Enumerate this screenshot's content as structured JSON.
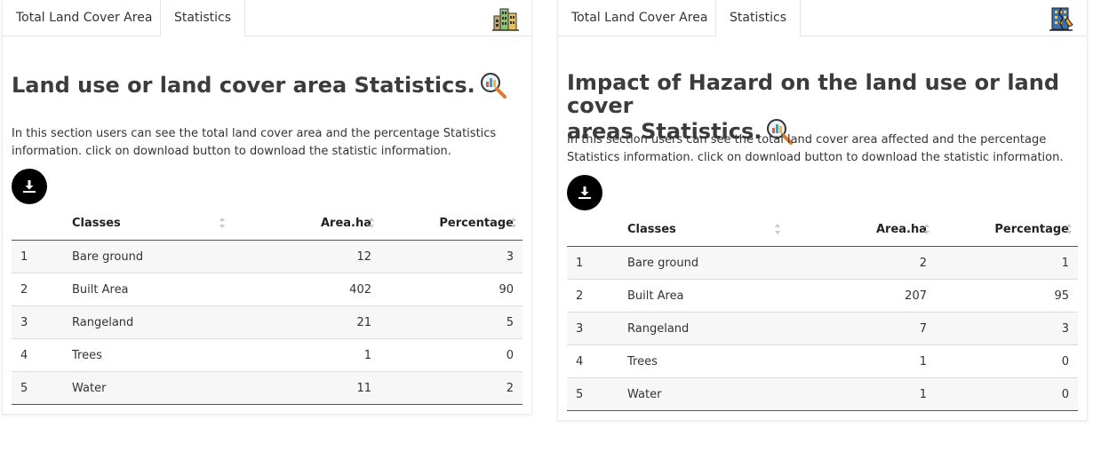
{
  "left_panel": {
    "tabs": [
      "Total Land Cover Area",
      "Statistics"
    ],
    "active_tab": 1,
    "title": "Land use or land cover area Statistics.",
    "description": "In this section users can see the total land cover area and the percentage Statistics information. click on download button to download the statistic information.",
    "table": {
      "headers": [
        "",
        "Classes",
        "Area.ha",
        "Percentage"
      ],
      "rows": [
        [
          "1",
          "Bare ground",
          "12",
          "3"
        ],
        [
          "2",
          "Built Area",
          "402",
          "90"
        ],
        [
          "3",
          "Rangeland",
          "21",
          "5"
        ],
        [
          "4",
          "Trees",
          "1",
          "0"
        ],
        [
          "5",
          "Water",
          "11",
          "2"
        ]
      ]
    },
    "tab_icon": "city-buildings-icon"
  },
  "right_panel": {
    "tabs": [
      "Total Land Cover Area",
      "Statistics"
    ],
    "active_tab": 1,
    "title_line1": "Impact of Hazard on the land use or land cover",
    "title_line2": "areas Statistics.",
    "description": "In this section users can see the total land cover area affected and the percentage Statistics information. click on download button to download the statistic information.",
    "table": {
      "headers": [
        "",
        "Classes",
        "Area.ha",
        "Percentage"
      ],
      "rows": [
        [
          "1",
          "Bare ground",
          "2",
          "1"
        ],
        [
          "2",
          "Built Area",
          "207",
          "95"
        ],
        [
          "3",
          "Rangeland",
          "7",
          "3"
        ],
        [
          "4",
          "Trees",
          "1",
          "0"
        ],
        [
          "5",
          "Water",
          "1",
          "0"
        ]
      ]
    },
    "tab_icon": "damaged-building-icon"
  },
  "colors": {
    "download_button": "#000000",
    "row_stripe": "#f7f7f7",
    "title": "#3c3c3c"
  }
}
